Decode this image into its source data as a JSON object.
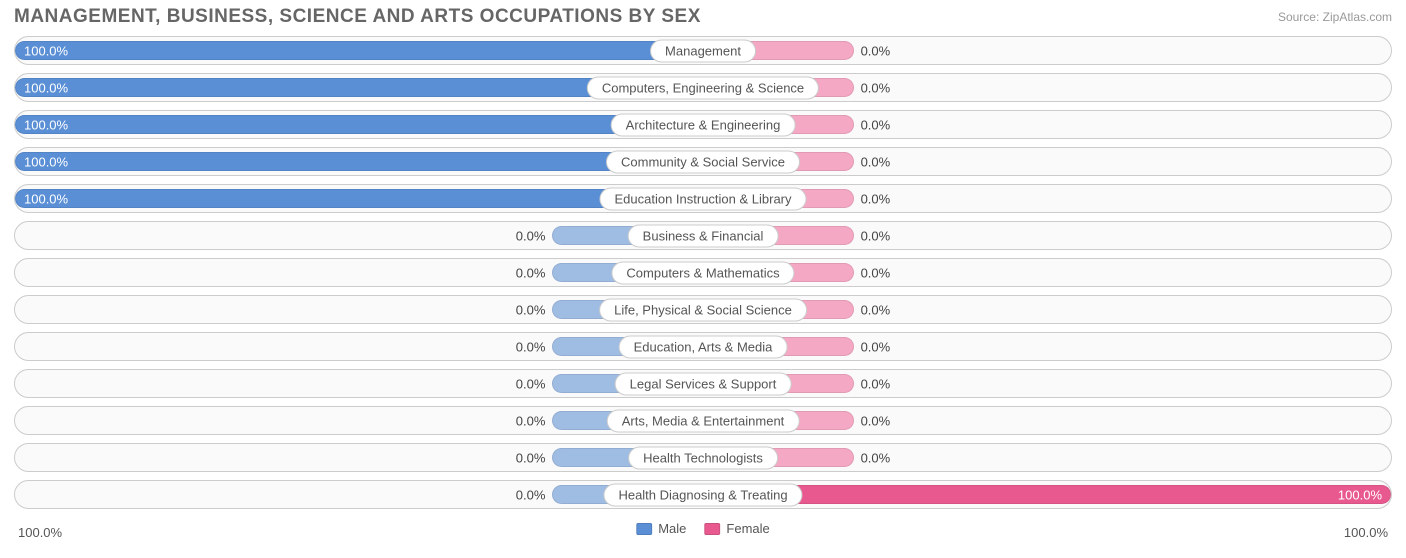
{
  "title": "MANAGEMENT, BUSINESS, SCIENCE AND ARTS OCCUPATIONS BY SEX",
  "source": "Source: ZipAtlas.com",
  "axis": {
    "left": "100.0%",
    "right": "100.0%"
  },
  "legend": {
    "male": "Male",
    "female": "Female"
  },
  "colors": {
    "male_full": "#5a8fd6",
    "male_zero": "#9fbce3",
    "female_full": "#e85a8f",
    "female_zero": "#f5a8c4",
    "track_border": "#cccccc",
    "track_bg": "#fafafa",
    "title": "#666666",
    "text": "#555555"
  },
  "min_bar_percent": 22,
  "rows": [
    {
      "category": "Management",
      "male": 100.0,
      "female": 0.0,
      "male_label": "100.0%",
      "female_label": "0.0%"
    },
    {
      "category": "Computers, Engineering & Science",
      "male": 100.0,
      "female": 0.0,
      "male_label": "100.0%",
      "female_label": "0.0%"
    },
    {
      "category": "Architecture & Engineering",
      "male": 100.0,
      "female": 0.0,
      "male_label": "100.0%",
      "female_label": "0.0%"
    },
    {
      "category": "Community & Social Service",
      "male": 100.0,
      "female": 0.0,
      "male_label": "100.0%",
      "female_label": "0.0%"
    },
    {
      "category": "Education Instruction & Library",
      "male": 100.0,
      "female": 0.0,
      "male_label": "100.0%",
      "female_label": "0.0%"
    },
    {
      "category": "Business & Financial",
      "male": 0.0,
      "female": 0.0,
      "male_label": "0.0%",
      "female_label": "0.0%"
    },
    {
      "category": "Computers & Mathematics",
      "male": 0.0,
      "female": 0.0,
      "male_label": "0.0%",
      "female_label": "0.0%"
    },
    {
      "category": "Life, Physical & Social Science",
      "male": 0.0,
      "female": 0.0,
      "male_label": "0.0%",
      "female_label": "0.0%"
    },
    {
      "category": "Education, Arts & Media",
      "male": 0.0,
      "female": 0.0,
      "male_label": "0.0%",
      "female_label": "0.0%"
    },
    {
      "category": "Legal Services & Support",
      "male": 0.0,
      "female": 0.0,
      "male_label": "0.0%",
      "female_label": "0.0%"
    },
    {
      "category": "Arts, Media & Entertainment",
      "male": 0.0,
      "female": 0.0,
      "male_label": "0.0%",
      "female_label": "0.0%"
    },
    {
      "category": "Health Technologists",
      "male": 0.0,
      "female": 0.0,
      "male_label": "0.0%",
      "female_label": "0.0%"
    },
    {
      "category": "Health Diagnosing & Treating",
      "male": 0.0,
      "female": 100.0,
      "male_label": "0.0%",
      "female_label": "100.0%"
    }
  ]
}
